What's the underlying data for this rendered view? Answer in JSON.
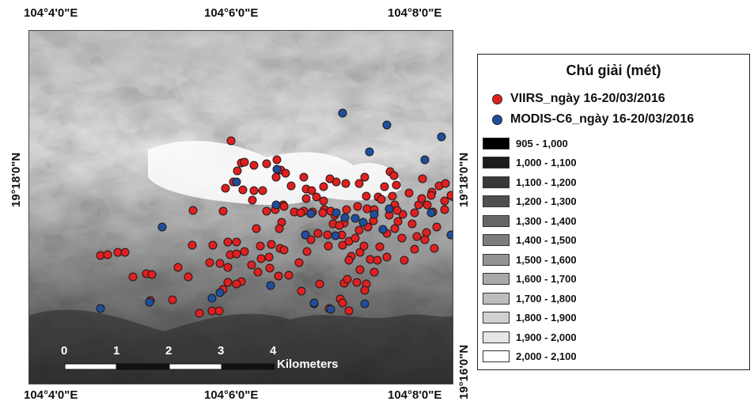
{
  "map": {
    "top_lon_labels": [
      "104°4'0\"E",
      "104°6'0\"E",
      "104°8'0\"E"
    ],
    "bottom_lon_labels": [
      "104°4'0\"E",
      "104°6'0\"E",
      "104°8'0\"E"
    ],
    "left_lat_labels": [
      "19°18'0\"N"
    ],
    "right_lat_labels": [
      "19°18'0\"N",
      "19°16'0\"N"
    ],
    "scale_bar": {
      "ticks": [
        "0",
        "1",
        "2",
        "3",
        "4"
      ],
      "unit": "Kilometers"
    }
  },
  "legend": {
    "title": "Chú giải (mét)",
    "points": [
      {
        "label": "VIIRS_ngày 16-20/03/2016",
        "color": "#e02020"
      },
      {
        "label": "MODIS-C6_ngày 16-20/03/2016",
        "color": "#1f4e9c"
      }
    ],
    "classes": [
      {
        "label": "905 - 1,000",
        "color": "#000000"
      },
      {
        "label": "1,000 - 1,100",
        "color": "#1c1c1c"
      },
      {
        "label": "1,100 - 1,200",
        "color": "#383838"
      },
      {
        "label": "1,200 - 1,300",
        "color": "#4f4f4f"
      },
      {
        "label": "1,300 - 1,400",
        "color": "#666666"
      },
      {
        "label": "1,400 - 1,500",
        "color": "#7d7d7d"
      },
      {
        "label": "1,500 - 1,600",
        "color": "#939393"
      },
      {
        "label": "1,600 - 1,700",
        "color": "#a9a9a9"
      },
      {
        "label": "1,700 - 1,800",
        "color": "#bdbdbd"
      },
      {
        "label": "1,800 - 1,900",
        "color": "#d1d1d1"
      },
      {
        "label": "1,900 - 2,000",
        "color": "#e6e6e6"
      },
      {
        "label": "2,000 - 2,100",
        "color": "#ffffff"
      }
    ]
  }
}
